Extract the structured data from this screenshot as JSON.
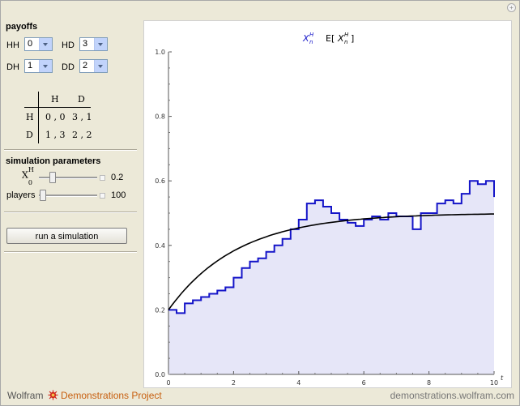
{
  "payoffs": {
    "title": "payoffs",
    "HH": {
      "label": "HH",
      "value": "0"
    },
    "HD": {
      "label": "HD",
      "value": "3"
    },
    "DH": {
      "label": "DH",
      "value": "1"
    },
    "DD": {
      "label": "DD",
      "value": "2"
    }
  },
  "matrix": {
    "col_H": "H",
    "col_D": "D",
    "row_H": "H",
    "row_D": "D",
    "HH": "0 , 0",
    "HD": "3 , 1",
    "DH": "1 , 3",
    "DD": "2 , 2"
  },
  "simulation": {
    "title": "simulation parameters",
    "x0_label_main": "X",
    "x0_label_sup": "H",
    "x0_label_sub": "0",
    "x0_value": "0.2",
    "x0_fraction": 0.2,
    "players_label": "players",
    "players_value": "100",
    "players_fraction": 0.0
  },
  "run_button": "run a simulation",
  "legend": {
    "x_label": "X",
    "x_sup": "H",
    "x_sub": "n",
    "e_label": "E[",
    "e_x": "X",
    "e_sup": "H",
    "e_sub": "n",
    "e_close": "]"
  },
  "footer": {
    "wolfram": "Wolfram",
    "demos": "Demonstrations Project",
    "site": "demonstrations.wolfram.com"
  },
  "colors": {
    "simulation_line": "#1414c8",
    "fill": "#e6e6f8",
    "expectation_line": "#000000",
    "accent_orange": "#c75f0f"
  },
  "chart_data": {
    "type": "line",
    "xlabel": "t",
    "ylabel": "",
    "xlim": [
      0,
      10
    ],
    "ylim": [
      0,
      1
    ],
    "x_ticks": [
      "0",
      "2",
      "4",
      "6",
      "8",
      "10"
    ],
    "y_ticks": [
      "0.0",
      "0.2",
      "0.4",
      "0.6",
      "0.8",
      "1.0"
    ],
    "series": [
      {
        "name": "X_n^H",
        "style": "step",
        "x": [
          0,
          0.25,
          0.5,
          0.75,
          1.0,
          1.25,
          1.5,
          1.75,
          2.0,
          2.25,
          2.5,
          2.75,
          3.0,
          3.25,
          3.5,
          3.75,
          4.0,
          4.25,
          4.5,
          4.75,
          5.0,
          5.25,
          5.5,
          5.75,
          6.0,
          6.25,
          6.5,
          6.75,
          7.0,
          7.25,
          7.5,
          7.75,
          8.0,
          8.25,
          8.5,
          8.75,
          9.0,
          9.25,
          9.5,
          9.75,
          10.0
        ],
        "values": [
          0.2,
          0.19,
          0.22,
          0.23,
          0.24,
          0.25,
          0.26,
          0.27,
          0.3,
          0.33,
          0.35,
          0.36,
          0.38,
          0.4,
          0.42,
          0.45,
          0.48,
          0.53,
          0.54,
          0.52,
          0.5,
          0.48,
          0.47,
          0.46,
          0.48,
          0.49,
          0.48,
          0.5,
          0.49,
          0.49,
          0.45,
          0.5,
          0.5,
          0.53,
          0.54,
          0.53,
          0.56,
          0.6,
          0.59,
          0.6,
          0.55
        ]
      },
      {
        "name": "E[X_n^H]",
        "style": "smooth",
        "function": "0.5 - 0.3*exp(-0.47*t)"
      }
    ],
    "fill_under": "X_n^H"
  }
}
